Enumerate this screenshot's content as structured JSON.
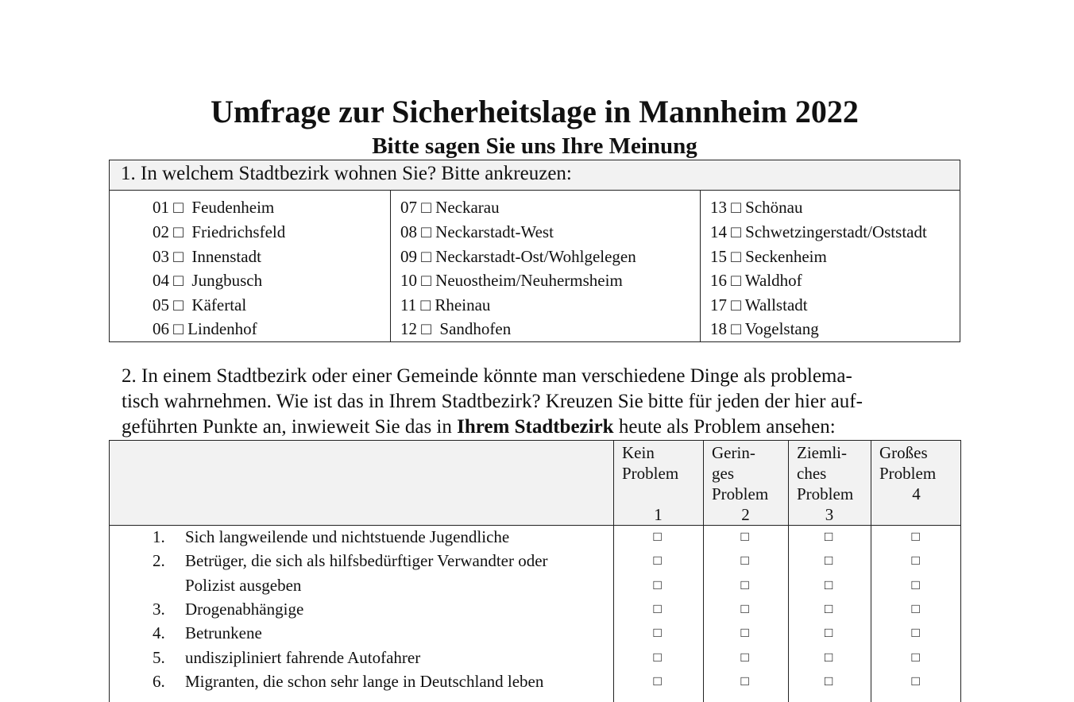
{
  "title": "Umfrage zur Sicherheitslage in Mannheim 2022",
  "subtitle": "Bitte sagen Sie uns Ihre Meinung",
  "question1": {
    "prompt": "1. In welchem Stadtbezirk wohnen Sie? Bitte ankreuzen:",
    "columns": [
      [
        "01 □  Feudenheim",
        "02 □  Friedrichsfeld",
        "03 □  Innenstadt",
        "04 □  Jungbusch",
        "05 □  Käfertal",
        "06 □ Lindenhof"
      ],
      [
        "07 □ Neckarau",
        "08 □ Neckarstadt-West",
        "09 □ Neckarstadt-Ost/Wohlgelegen",
        "10 □ Neuostheim/Neuhermsheim",
        "11 □ Rheinau",
        "12 □  Sandhofen"
      ],
      [
        "13 □ Schönau",
        "14 □ Schwetzingerstadt/Oststadt",
        "15 □ Seckenheim",
        "16 □ Waldhof",
        "17 □ Wallstadt",
        "18 □ Vogelstang"
      ]
    ]
  },
  "question2": {
    "lines": [
      "2. In einem Stadtbezirk oder einer Gemeinde könnte man verschiedene Dinge als problema-",
      "tisch wahrnehmen. Wie ist das in Ihrem Stadtbezirk? Kreuzen Sie bitte für jeden der hier auf-"
    ],
    "line3_pre": "geführten Punkte an, inwieweit Sie das in ",
    "line3_bold": "Ihrem Stadtbezirk",
    "line3_post": " heute als Problem ansehen:",
    "scale": [
      {
        "label": "Kein\nProblem",
        "value": "1"
      },
      {
        "label": "Gerin-\nges\nProblem",
        "value": "2"
      },
      {
        "label": "Ziemli-\nches\nProblem",
        "value": "3"
      },
      {
        "label": "Großes\nProblem",
        "value": "4"
      }
    ],
    "checkbox": "□",
    "rows": [
      {
        "num": "1.",
        "text": "Sich langweilende und nichtstuende Jugendliche"
      },
      {
        "num": "2.",
        "text": "Betrüger, die sich als hilfsbedürftiger Verwandter oder"
      },
      {
        "num": "",
        "text": "Polizist ausgeben"
      },
      {
        "num": "3.",
        "text": "Drogenabhängige"
      },
      {
        "num": "4.",
        "text": "Betrunkene"
      },
      {
        "num": "5.",
        "text": "undiszipliniert fahrende Autofahrer"
      },
      {
        "num": "6.",
        "text": "Migranten, die schon sehr lange in Deutschland leben"
      }
    ]
  }
}
